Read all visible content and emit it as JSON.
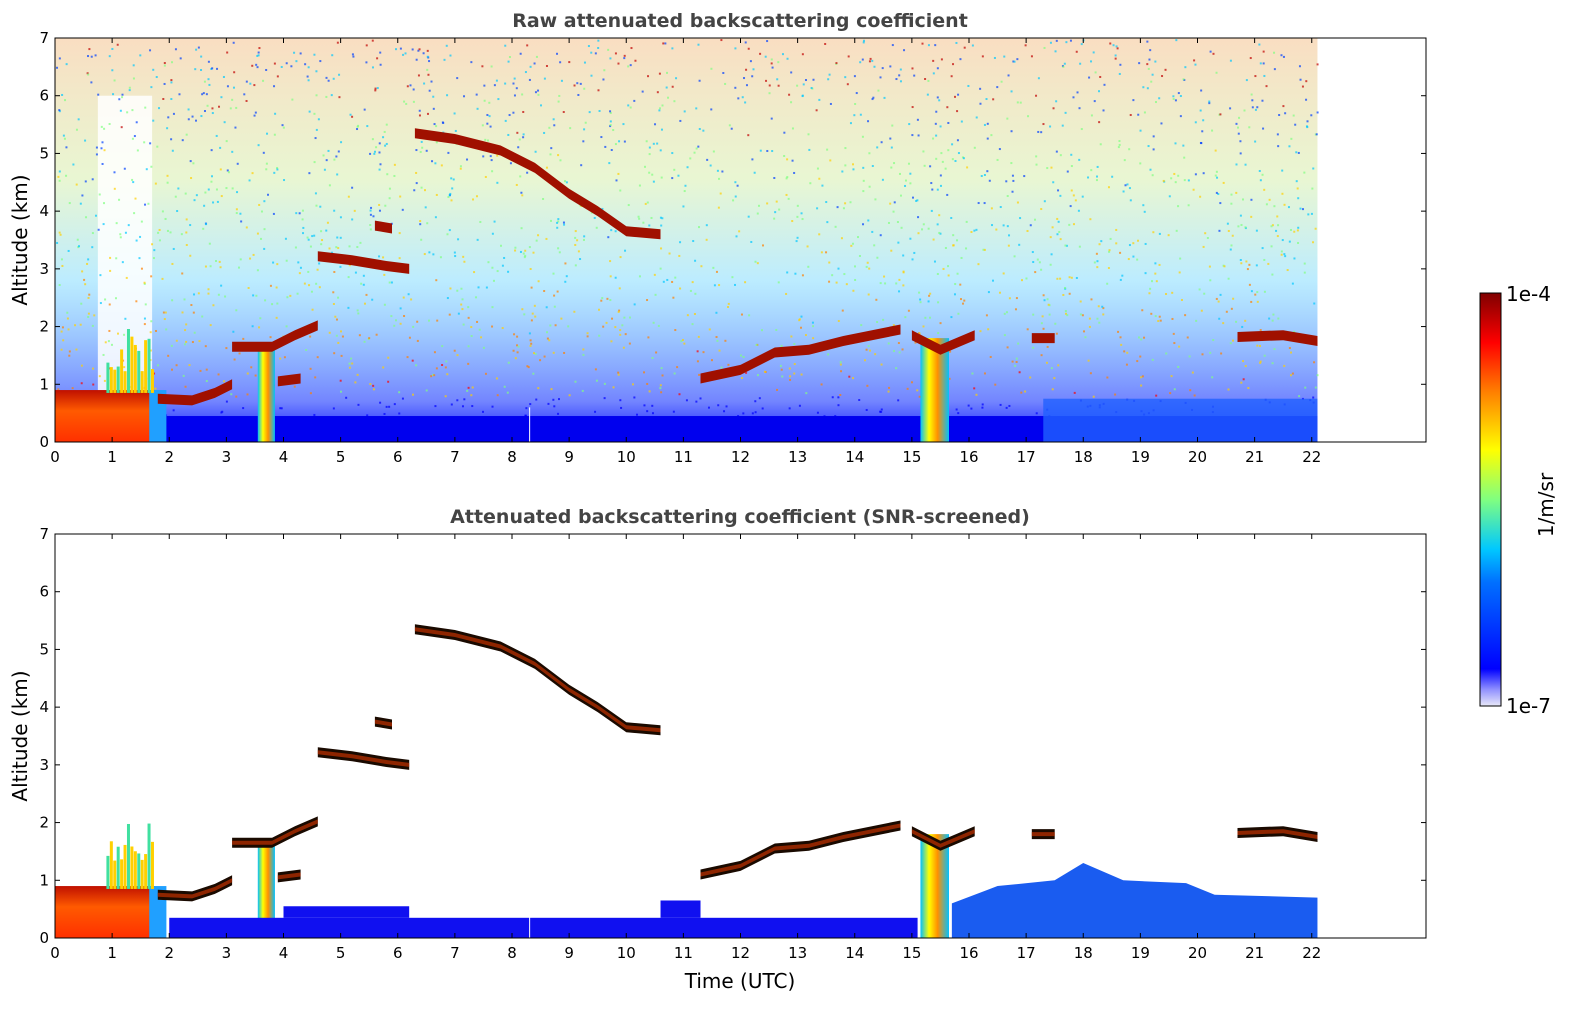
{
  "chart_data": [
    {
      "type": "heatmap",
      "title": "Raw attenuated backscattering coefficient",
      "ylabel": "Altitude (km)",
      "xlim": [
        0,
        24
      ],
      "ylim": [
        0,
        7
      ],
      "x_ticks": [
        "0",
        "1",
        "2",
        "3",
        "4",
        "5",
        "6",
        "7",
        "8",
        "9",
        "10",
        "11",
        "12",
        "13",
        "14",
        "15",
        "16",
        "17",
        "18",
        "19",
        "20",
        "21",
        "22"
      ],
      "y_ticks": [
        "0",
        "1",
        "2",
        "3",
        "4",
        "5",
        "6",
        "7"
      ],
      "data_end_time": 22.1,
      "features": [
        {
          "name": "boundary layer aerosol",
          "x": [
            0,
            1.8
          ],
          "y": [
            0,
            0.9
          ]
        },
        {
          "name": "cloud layer",
          "x": [
            6.3,
            10.6
          ],
          "y": [
            5.35,
            3.55
          ]
        },
        {
          "name": "cloud layer",
          "x": [
            4.6,
            6.2
          ],
          "y": [
            3.2,
            3.0
          ]
        },
        {
          "name": "cloud layer",
          "x": [
            3.1,
            4.6
          ],
          "y": [
            1.65,
            2.0
          ]
        },
        {
          "name": "cloud layer",
          "x": [
            11.3,
            14.8
          ],
          "y": [
            1.1,
            1.95
          ]
        },
        {
          "name": "precipitation",
          "x": [
            15.2,
            15.6
          ],
          "y": [
            0,
            1.8
          ]
        },
        {
          "name": "cloud layer",
          "x": [
            20.7,
            22.1
          ],
          "y": [
            1.8,
            1.75
          ]
        }
      ]
    },
    {
      "type": "heatmap",
      "title": "Attenuated backscattering coefficient (SNR-screened)",
      "xlabel": "Time (UTC)",
      "ylabel": "Altitude (km)",
      "xlim": [
        0,
        24
      ],
      "ylim": [
        0,
        7
      ],
      "x_ticks": [
        "0",
        "1",
        "2",
        "3",
        "4",
        "5",
        "6",
        "7",
        "8",
        "9",
        "10",
        "11",
        "12",
        "13",
        "14",
        "15",
        "16",
        "17",
        "18",
        "19",
        "20",
        "21",
        "22"
      ],
      "y_ticks": [
        "0",
        "1",
        "2",
        "3",
        "4",
        "5",
        "6",
        "7"
      ],
      "data_end_time": 22.1
    }
  ],
  "colorbar": {
    "label": "1/m/sr",
    "max_label": "1e-4",
    "min_label": "1e-7",
    "scale": "log",
    "range": [
      1e-07,
      0.0001
    ],
    "colormap": "jet",
    "colors": [
      "#e8e8f8",
      "#0000ff",
      "#00c8ff",
      "#80ff80",
      "#ffff00",
      "#ff8000",
      "#ff0000",
      "#800000"
    ]
  }
}
